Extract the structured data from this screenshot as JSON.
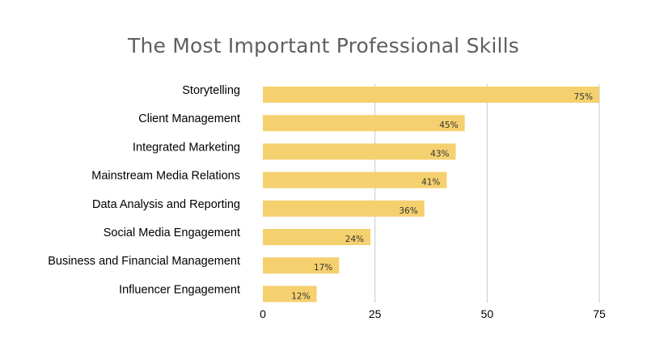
{
  "chart_data": {
    "type": "bar",
    "orientation": "horizontal",
    "title": "The Most Important Professional Skills",
    "categories": [
      "Storytelling",
      "Client Management",
      "Integrated Marketing",
      "Mainstream Media Relations",
      "Data Analysis and Reporting",
      "Social Media Engagement",
      "Business and Financial Management",
      "Influencer Engagement"
    ],
    "values": [
      75,
      45,
      43,
      41,
      36,
      24,
      17,
      12
    ],
    "data_labels": [
      "75%",
      "45%",
      "43%",
      "41%",
      "36%",
      "24%",
      "17%",
      "12%"
    ],
    "xlim": [
      0,
      75
    ],
    "x_ticks": [
      "0",
      "25",
      "50",
      "75"
    ],
    "x_tick_values": [
      0,
      25,
      50,
      75
    ],
    "grid": "vertical",
    "legend": "none",
    "bar_color": "#F5D06E",
    "grid_color": "#c8c8c8"
  }
}
